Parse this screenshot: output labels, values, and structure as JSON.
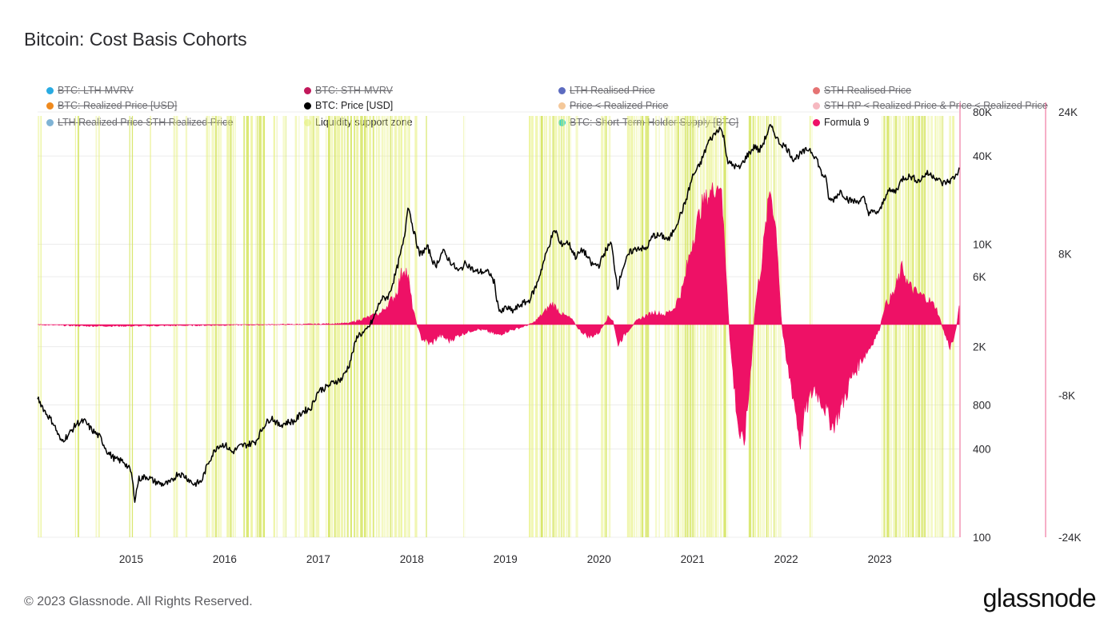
{
  "title": "Bitcoin: Cost Basis Cohorts",
  "footer": "© 2023 Glassnode. All Rights Reserved.",
  "brand": "glassnode",
  "colors": {
    "price": "#000000",
    "formula": "#ee1166",
    "zone": "#e6f07a",
    "zone_dense": "#d4e45a",
    "axis_right": "#ee5f8f",
    "grid": "#ececec"
  },
  "legend": [
    {
      "label": "BTC: LTH-MVRV",
      "color": "#29abe2",
      "active": false
    },
    {
      "label": "BTC: STH-MVRV",
      "color": "#c2185b",
      "active": false
    },
    {
      "label": "LTH Realised Price",
      "color": "#5c6bc0",
      "active": false
    },
    {
      "label": "STH Realised Price",
      "color": "#e57373",
      "active": false
    },
    {
      "label": "BTC: Realized Price [USD]",
      "color": "#ef8a1e",
      "active": false
    },
    {
      "label": "BTC: Price [USD]",
      "color": "#000000",
      "active": true
    },
    {
      "label": "Price < Realized Price",
      "color": "#f4c89a",
      "active": false
    },
    {
      "label": "STH-RP < Realized Price & Price < Realized Price",
      "color": "#f6b8c0",
      "active": false
    },
    {
      "label": "LTH Realized Price STH Realized Price",
      "color": "#7fb3d5",
      "active": false
    },
    {
      "label": "Liquidity support zone",
      "color": "#eef7b0",
      "active": true
    },
    {
      "label": "BTC: Short-Term Holder Supply [BTC]",
      "color": "#22d3e0",
      "active": false
    },
    {
      "label": "Formula 9",
      "color": "#ee1166",
      "active": true
    }
  ],
  "chart_data": {
    "type": "line",
    "title": "Bitcoin: Cost Basis Cohorts",
    "x_ticks": [
      "2015",
      "2016",
      "2017",
      "2018",
      "2019",
      "2020",
      "2021",
      "2022",
      "2023"
    ],
    "x_range": [
      2014.0,
      2023.85
    ],
    "y_left": {
      "scale": "log",
      "ticks": [
        "100",
        "400",
        "800",
        "2K",
        "6K",
        "10K",
        "40K",
        "80K"
      ],
      "tick_values": [
        100,
        400,
        800,
        2000,
        6000,
        10000,
        40000,
        80000
      ],
      "range": [
        100,
        80000
      ]
    },
    "y_right": {
      "scale": "linear",
      "ticks": [
        "-24K",
        "-8K",
        "8K",
        "24K"
      ],
      "tick_values": [
        -24000,
        -8000,
        8000,
        24000
      ],
      "range": [
        -24000,
        24000
      ]
    },
    "series": [
      {
        "name": "BTC: Price [USD]",
        "axis": "left",
        "points": [
          [
            2014.0,
            900
          ],
          [
            2014.08,
            720
          ],
          [
            2014.17,
            600
          ],
          [
            2014.25,
            450
          ],
          [
            2014.33,
            500
          ],
          [
            2014.42,
            600
          ],
          [
            2014.5,
            620
          ],
          [
            2014.58,
            540
          ],
          [
            2014.67,
            480
          ],
          [
            2014.75,
            380
          ],
          [
            2014.83,
            340
          ],
          [
            2014.92,
            330
          ],
          [
            2015.0,
            280
          ],
          [
            2015.04,
            180
          ],
          [
            2015.08,
            250
          ],
          [
            2015.17,
            260
          ],
          [
            2015.25,
            240
          ],
          [
            2015.33,
            230
          ],
          [
            2015.42,
            235
          ],
          [
            2015.5,
            275
          ],
          [
            2015.58,
            260
          ],
          [
            2015.67,
            230
          ],
          [
            2015.75,
            240
          ],
          [
            2015.83,
            330
          ],
          [
            2015.92,
            420
          ],
          [
            2016.0,
            430
          ],
          [
            2016.08,
            380
          ],
          [
            2016.17,
            420
          ],
          [
            2016.25,
            430
          ],
          [
            2016.33,
            450
          ],
          [
            2016.42,
            580
          ],
          [
            2016.5,
            660
          ],
          [
            2016.58,
            580
          ],
          [
            2016.67,
            610
          ],
          [
            2016.75,
            620
          ],
          [
            2016.83,
            720
          ],
          [
            2016.92,
            760
          ],
          [
            2017.0,
            1000
          ],
          [
            2017.08,
            1050
          ],
          [
            2017.17,
            1150
          ],
          [
            2017.25,
            1200
          ],
          [
            2017.33,
            1500
          ],
          [
            2017.42,
            2400
          ],
          [
            2017.5,
            2500
          ],
          [
            2017.58,
            3000
          ],
          [
            2017.67,
            4200
          ],
          [
            2017.75,
            4400
          ],
          [
            2017.83,
            6400
          ],
          [
            2017.92,
            11000
          ],
          [
            2017.96,
            19000
          ],
          [
            2018.0,
            14000
          ],
          [
            2018.04,
            11000
          ],
          [
            2018.08,
            8500
          ],
          [
            2018.17,
            9500
          ],
          [
            2018.25,
            7000
          ],
          [
            2018.33,
            9000
          ],
          [
            2018.42,
            7500
          ],
          [
            2018.5,
            6500
          ],
          [
            2018.58,
            7500
          ],
          [
            2018.67,
            6500
          ],
          [
            2018.75,
            6500
          ],
          [
            2018.83,
            6400
          ],
          [
            2018.88,
            5500
          ],
          [
            2018.92,
            3800
          ],
          [
            2018.96,
            3400
          ],
          [
            2019.0,
            3700
          ],
          [
            2019.08,
            3500
          ],
          [
            2019.17,
            3900
          ],
          [
            2019.25,
            4100
          ],
          [
            2019.33,
            5200
          ],
          [
            2019.42,
            8000
          ],
          [
            2019.5,
            11500
          ],
          [
            2019.54,
            12500
          ],
          [
            2019.58,
            10000
          ],
          [
            2019.67,
            10300
          ],
          [
            2019.75,
            8200
          ],
          [
            2019.83,
            9200
          ],
          [
            2019.92,
            7300
          ],
          [
            2020.0,
            7200
          ],
          [
            2020.08,
            9300
          ],
          [
            2020.13,
            10200
          ],
          [
            2020.2,
            5000
          ],
          [
            2020.25,
            6800
          ],
          [
            2020.33,
            8800
          ],
          [
            2020.42,
            9500
          ],
          [
            2020.5,
            9200
          ],
          [
            2020.58,
            11500
          ],
          [
            2020.67,
            11400
          ],
          [
            2020.75,
            10700
          ],
          [
            2020.83,
            13800
          ],
          [
            2020.92,
            19000
          ],
          [
            2021.0,
            29000
          ],
          [
            2021.08,
            35000
          ],
          [
            2021.17,
            50000
          ],
          [
            2021.25,
            58000
          ],
          [
            2021.29,
            63000
          ],
          [
            2021.33,
            55000
          ],
          [
            2021.38,
            36000
          ],
          [
            2021.42,
            35000
          ],
          [
            2021.5,
            33000
          ],
          [
            2021.58,
            40000
          ],
          [
            2021.67,
            47000
          ],
          [
            2021.71,
            43000
          ],
          [
            2021.75,
            48000
          ],
          [
            2021.83,
            64000
          ],
          [
            2021.88,
            57000
          ],
          [
            2021.92,
            50000
          ],
          [
            2022.0,
            46000
          ],
          [
            2022.08,
            38000
          ],
          [
            2022.17,
            42000
          ],
          [
            2022.25,
            45000
          ],
          [
            2022.33,
            38000
          ],
          [
            2022.38,
            30000
          ],
          [
            2022.42,
            29000
          ],
          [
            2022.46,
            20000
          ],
          [
            2022.5,
            20000
          ],
          [
            2022.58,
            23000
          ],
          [
            2022.67,
            20000
          ],
          [
            2022.75,
            19500
          ],
          [
            2022.83,
            20500
          ],
          [
            2022.88,
            16500
          ],
          [
            2022.96,
            16500
          ],
          [
            2023.0,
            16700
          ],
          [
            2023.08,
            23000
          ],
          [
            2023.17,
            23000
          ],
          [
            2023.25,
            28500
          ],
          [
            2023.33,
            29000
          ],
          [
            2023.42,
            27000
          ],
          [
            2023.5,
            30500
          ],
          [
            2023.58,
            29300
          ],
          [
            2023.67,
            26000
          ],
          [
            2023.75,
            27000
          ],
          [
            2023.83,
            30000
          ],
          [
            2023.85,
            34500
          ]
        ]
      },
      {
        "name": "Formula 9",
        "axis": "right",
        "points": [
          [
            2014.0,
            0
          ],
          [
            2014.5,
            -150
          ],
          [
            2015.0,
            -150
          ],
          [
            2015.5,
            -100
          ],
          [
            2016.0,
            -50
          ],
          [
            2016.5,
            0
          ],
          [
            2017.0,
            50
          ],
          [
            2017.33,
            150
          ],
          [
            2017.5,
            700
          ],
          [
            2017.67,
            1300
          ],
          [
            2017.83,
            3400
          ],
          [
            2017.92,
            6800
          ],
          [
            2017.96,
            5200
          ],
          [
            2018.0,
            2400
          ],
          [
            2018.04,
            500
          ],
          [
            2018.1,
            -1500
          ],
          [
            2018.2,
            -2200
          ],
          [
            2018.3,
            -1200
          ],
          [
            2018.4,
            -1800
          ],
          [
            2018.5,
            -1200
          ],
          [
            2018.6,
            -800
          ],
          [
            2018.7,
            -500
          ],
          [
            2018.8,
            -700
          ],
          [
            2018.92,
            -1200
          ],
          [
            2019.0,
            -800
          ],
          [
            2019.1,
            -500
          ],
          [
            2019.2,
            -200
          ],
          [
            2019.3,
            200
          ],
          [
            2019.4,
            1200
          ],
          [
            2019.5,
            2400
          ],
          [
            2019.6,
            1200
          ],
          [
            2019.7,
            700
          ],
          [
            2019.8,
            -700
          ],
          [
            2019.9,
            -1400
          ],
          [
            2020.0,
            -900
          ],
          [
            2020.1,
            900
          ],
          [
            2020.15,
            500
          ],
          [
            2020.2,
            -2200
          ],
          [
            2020.3,
            -800
          ],
          [
            2020.4,
            400
          ],
          [
            2020.5,
            1000
          ],
          [
            2020.6,
            1400
          ],
          [
            2020.7,
            1100
          ],
          [
            2020.8,
            1800
          ],
          [
            2020.9,
            4200
          ],
          [
            2021.0,
            9500
          ],
          [
            2021.1,
            13500
          ],
          [
            2021.2,
            15000
          ],
          [
            2021.3,
            16000
          ],
          [
            2021.35,
            8000
          ],
          [
            2021.4,
            -2000
          ],
          [
            2021.45,
            -7500
          ],
          [
            2021.5,
            -12500
          ],
          [
            2021.55,
            -13500
          ],
          [
            2021.6,
            -8000
          ],
          [
            2021.67,
            2000
          ],
          [
            2021.75,
            8000
          ],
          [
            2021.83,
            15500
          ],
          [
            2021.9,
            10000
          ],
          [
            2021.95,
            300
          ],
          [
            2022.0,
            -4000
          ],
          [
            2022.05,
            -6500
          ],
          [
            2022.1,
            -9500
          ],
          [
            2022.15,
            -13500
          ],
          [
            2022.2,
            -10000
          ],
          [
            2022.3,
            -7000
          ],
          [
            2022.4,
            -9000
          ],
          [
            2022.5,
            -11500
          ],
          [
            2022.6,
            -9000
          ],
          [
            2022.7,
            -6000
          ],
          [
            2022.8,
            -4000
          ],
          [
            2022.9,
            -2500
          ],
          [
            2023.0,
            -500
          ],
          [
            2023.05,
            2000
          ],
          [
            2023.15,
            3500
          ],
          [
            2023.25,
            6500
          ],
          [
            2023.3,
            4500
          ],
          [
            2023.4,
            3500
          ],
          [
            2023.5,
            3000
          ],
          [
            2023.6,
            2000
          ],
          [
            2023.7,
            -1200
          ],
          [
            2023.75,
            -2500
          ],
          [
            2023.8,
            -1500
          ],
          [
            2023.85,
            1800
          ]
        ]
      }
    ],
    "liquidity_support_zones": [
      [
        2014.0,
        2014.05
      ],
      [
        2014.4,
        2014.45
      ],
      [
        2014.62,
        2014.67
      ],
      [
        2014.98,
        2015.02
      ],
      [
        2015.2,
        2015.22
      ],
      [
        2015.45,
        2015.5
      ],
      [
        2015.58,
        2015.6
      ],
      [
        2015.8,
        2015.97
      ],
      [
        2016.02,
        2016.12
      ],
      [
        2016.2,
        2016.3
      ],
      [
        2016.33,
        2016.43
      ],
      [
        2016.52,
        2016.56
      ],
      [
        2016.62,
        2016.66
      ],
      [
        2016.75,
        2016.8
      ],
      [
        2016.85,
        2017.02
      ],
      [
        2017.08,
        2017.98
      ],
      [
        2018.03,
        2018.06
      ],
      [
        2018.15,
        2018.17
      ],
      [
        2018.55,
        2018.57
      ],
      [
        2019.25,
        2019.7
      ],
      [
        2019.75,
        2019.78
      ],
      [
        2020.02,
        2020.13
      ],
      [
        2020.3,
        2020.55
      ],
      [
        2020.6,
        2020.65
      ],
      [
        2020.7,
        2021.38
      ],
      [
        2021.6,
        2021.95
      ],
      [
        2022.25,
        2022.28
      ],
      [
        2023.02,
        2023.68
      ],
      [
        2023.74,
        2023.8
      ]
    ]
  }
}
